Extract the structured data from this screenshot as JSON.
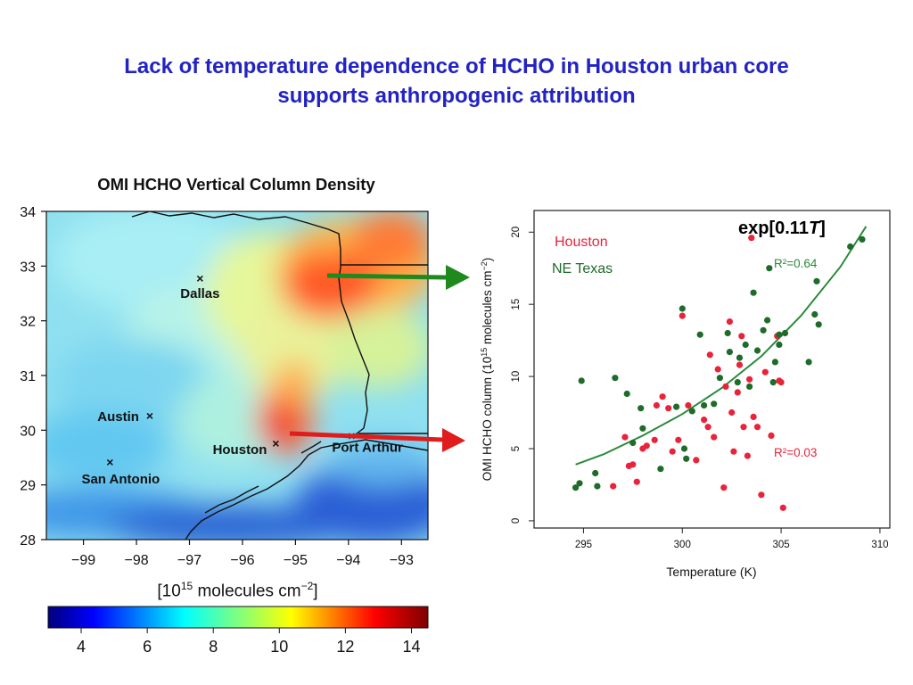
{
  "slide": {
    "title_line1": "Lack of temperature dependence of HCHO in Houston urban core",
    "title_line2": "supports anthropogenic attribution"
  },
  "colors": {
    "title": "#2323c4",
    "houston": "#e8233a",
    "ne_texas": "#1e6b2a",
    "fit_line": "#2a8a3a",
    "arrow_green": "#1e8a1e",
    "arrow_red": "#e01c1c"
  },
  "chart_data": [
    {
      "type": "heatmap",
      "title": "OMI HCHO Vertical Column Density",
      "colorbar_label": "[10",
      "colorbar_label_exp": "15",
      "colorbar_label_rest": " molecules cm",
      "colorbar_label_exp2": "−2",
      "colorbar_label_close": "]",
      "colorbar_range": [
        3,
        14.5
      ],
      "colorbar_ticks": [
        {
          "value": 4,
          "label": "4"
        },
        {
          "value": 6,
          "label": "6"
        },
        {
          "value": 8,
          "label": "8"
        },
        {
          "value": 10,
          "label": "10"
        },
        {
          "value": 12,
          "label": "12"
        },
        {
          "value": 14,
          "label": "14"
        }
      ],
      "xlim": [
        -99.7,
        -92.5
      ],
      "ylim": [
        28,
        34
      ],
      "x_ticks": [
        {
          "value": -99,
          "label": "−99"
        },
        {
          "value": -98,
          "label": "−98"
        },
        {
          "value": -97,
          "label": "−97"
        },
        {
          "value": -96,
          "label": "−96"
        },
        {
          "value": -95,
          "label": "−95"
        },
        {
          "value": -94,
          "label": "−94"
        },
        {
          "value": -93,
          "label": "−93"
        }
      ],
      "y_ticks": [
        {
          "value": 28,
          "label": "28"
        },
        {
          "value": 29,
          "label": "29"
        },
        {
          "value": 30,
          "label": "30"
        },
        {
          "value": 31,
          "label": "31"
        },
        {
          "value": 32,
          "label": "32"
        },
        {
          "value": 33,
          "label": "33"
        },
        {
          "value": 34,
          "label": "34"
        }
      ],
      "cities": [
        {
          "name": "Dallas",
          "lon": -96.8,
          "lat": 32.78
        },
        {
          "name": "Austin",
          "lon": -97.75,
          "lat": 30.27
        },
        {
          "name": "San Antonio",
          "lon": -98.5,
          "lat": 29.42
        },
        {
          "name": "Houston",
          "lon": -95.37,
          "lat": 29.76
        },
        {
          "name": "Port Arthur",
          "lon": -93.94,
          "lat": 29.9
        }
      ]
    },
    {
      "type": "scatter",
      "xlabel": "Temperature (K)",
      "ylabel_main": "OMI HCHO column (10",
      "ylabel_exp": "15",
      "ylabel_rest": " molecules cm",
      "ylabel_exp2": "−2",
      "ylabel_close": ")",
      "xlim": [
        292.5,
        310.5
      ],
      "ylim": [
        -0.5,
        21.5
      ],
      "x_ticks": [
        295,
        300,
        305,
        310
      ],
      "y_ticks": [
        0,
        5,
        10,
        15,
        20
      ],
      "legend": [
        "Houston",
        "NE Texas"
      ],
      "fit_label": "exp[0.11",
      "fit_label_var": "T",
      "fit_label_close": "]",
      "r2_ne_texas": "R²=0.64",
      "r2_houston": "R²=0.03",
      "fit_curve": {
        "x": [
          294.6,
          296,
          298,
          300,
          302,
          304,
          306,
          308,
          309.3
        ],
        "y": [
          3.9,
          4.6,
          5.9,
          7.4,
          9.2,
          11.4,
          14.2,
          17.6,
          20.4
        ]
      },
      "series": [
        {
          "name": "Houston",
          "points": [
            [
              296.5,
              2.4
            ],
            [
              297.1,
              5.8
            ],
            [
              297.3,
              3.8
            ],
            [
              297.5,
              3.9
            ],
            [
              297.7,
              2.7
            ],
            [
              298.0,
              5.0
            ],
            [
              298.2,
              5.2
            ],
            [
              298.6,
              5.6
            ],
            [
              298.7,
              8.0
            ],
            [
              299.0,
              8.6
            ],
            [
              299.3,
              7.8
            ],
            [
              299.5,
              4.8
            ],
            [
              299.8,
              5.6
            ],
            [
              300.0,
              14.2
            ],
            [
              300.3,
              8.0
            ],
            [
              300.7,
              4.2
            ],
            [
              301.1,
              7.0
            ],
            [
              301.3,
              6.5
            ],
            [
              301.4,
              11.5
            ],
            [
              301.6,
              5.8
            ],
            [
              301.8,
              10.5
            ],
            [
              302.1,
              2.3
            ],
            [
              302.2,
              9.3
            ],
            [
              302.4,
              13.8
            ],
            [
              302.5,
              7.5
            ],
            [
              302.6,
              4.8
            ],
            [
              302.8,
              8.9
            ],
            [
              302.9,
              10.8
            ],
            [
              303.1,
              6.5
            ],
            [
              303.3,
              4.5
            ],
            [
              303.4,
              9.8
            ],
            [
              303.5,
              19.6
            ],
            [
              303.6,
              7.2
            ],
            [
              303.8,
              6.5
            ],
            [
              304.0,
              1.8
            ],
            [
              304.2,
              10.3
            ],
            [
              304.5,
              5.9
            ],
            [
              304.8,
              12.8
            ],
            [
              304.9,
              9.7
            ],
            [
              305.0,
              9.6
            ],
            [
              305.1,
              0.9
            ],
            [
              303.0,
              12.8
            ]
          ]
        },
        {
          "name": "NE Texas",
          "points": [
            [
              294.6,
              2.3
            ],
            [
              294.8,
              2.6
            ],
            [
              294.9,
              9.7
            ],
            [
              295.6,
              3.3
            ],
            [
              295.7,
              2.4
            ],
            [
              296.6,
              9.9
            ],
            [
              297.2,
              8.8
            ],
            [
              297.5,
              5.4
            ],
            [
              297.9,
              7.8
            ],
            [
              298.0,
              6.4
            ],
            [
              298.9,
              3.6
            ],
            [
              299.7,
              7.9
            ],
            [
              300.0,
              14.7
            ],
            [
              300.1,
              5.0
            ],
            [
              300.2,
              4.3
            ],
            [
              300.5,
              7.6
            ],
            [
              300.9,
              12.9
            ],
            [
              301.1,
              8.0
            ],
            [
              301.6,
              8.1
            ],
            [
              301.9,
              9.9
            ],
            [
              302.3,
              13.0
            ],
            [
              302.4,
              11.7
            ],
            [
              302.8,
              9.6
            ],
            [
              302.9,
              11.3
            ],
            [
              303.2,
              12.2
            ],
            [
              303.4,
              9.3
            ],
            [
              303.6,
              15.8
            ],
            [
              303.8,
              11.8
            ],
            [
              304.1,
              13.2
            ],
            [
              304.3,
              13.9
            ],
            [
              304.4,
              17.5
            ],
            [
              304.6,
              9.6
            ],
            [
              304.7,
              11.0
            ],
            [
              304.9,
              12.2
            ],
            [
              305.2,
              13.0
            ],
            [
              306.4,
              11.0
            ],
            [
              306.7,
              14.3
            ],
            [
              306.8,
              16.6
            ],
            [
              306.9,
              13.6
            ],
            [
              308.5,
              19.0
            ],
            [
              309.1,
              19.5
            ],
            [
              304.9,
              12.9
            ]
          ]
        }
      ]
    }
  ]
}
